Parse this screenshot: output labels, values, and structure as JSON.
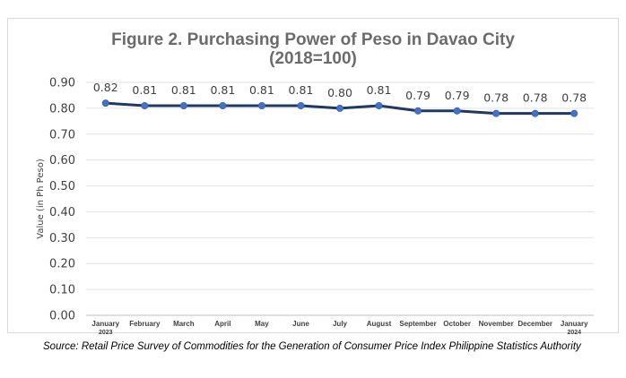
{
  "chart_data": {
    "type": "line",
    "title": "Figure 2. Purchasing Power of Peso in Davao City",
    "subtitle": "(2018=100)",
    "xlabel": "",
    "ylabel": "Value (in Ph Peso)",
    "ylim": [
      0,
      0.9
    ],
    "yticks": [
      "0.00",
      "0.10",
      "0.20",
      "0.30",
      "0.40",
      "0.50",
      "0.60",
      "0.70",
      "0.80",
      "0.90"
    ],
    "categories": [
      [
        "January",
        "2023"
      ],
      [
        "February"
      ],
      [
        "March"
      ],
      [
        "April"
      ],
      [
        "May"
      ],
      [
        "June"
      ],
      [
        "July"
      ],
      [
        "August"
      ],
      [
        "September"
      ],
      [
        "October"
      ],
      [
        "November"
      ],
      [
        "December"
      ],
      [
        "January",
        "2024"
      ]
    ],
    "values": [
      0.82,
      0.81,
      0.81,
      0.81,
      0.81,
      0.81,
      0.8,
      0.81,
      0.79,
      0.79,
      0.78,
      0.78,
      0.78
    ],
    "data_labels": [
      "0.82",
      "0.81",
      "0.81",
      "0.81",
      "0.81",
      "0.81",
      "0.80",
      "0.81",
      "0.79",
      "0.79",
      "0.78",
      "0.78",
      "0.78"
    ],
    "grid": true,
    "legend": "none",
    "line_color": "#1f3864",
    "marker_color": "#4472c4"
  },
  "source_note": "Source: Retail Price Survey of Commodities for the Generation of Consumer Price Index Philippine Statistics Authority"
}
